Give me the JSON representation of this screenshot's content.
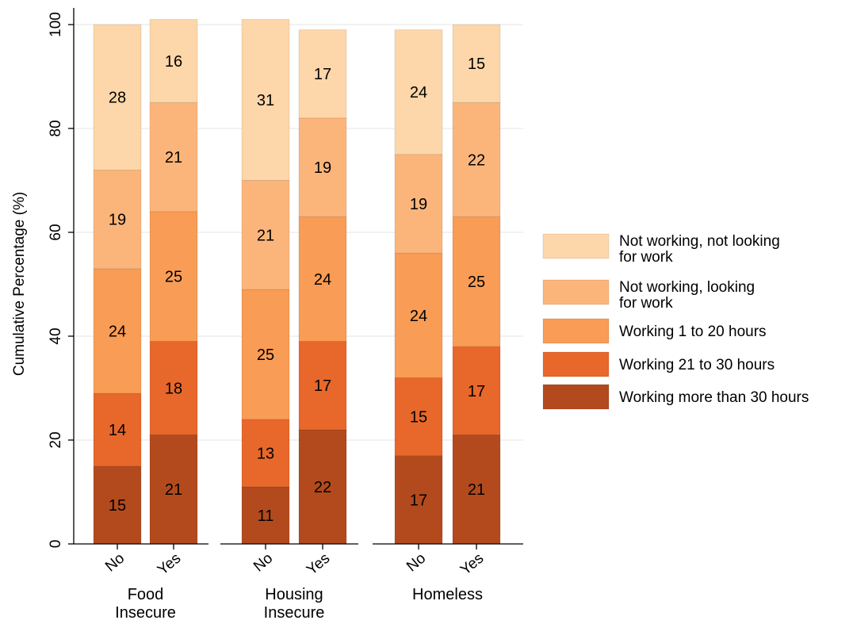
{
  "chart_data": {
    "type": "bar",
    "stacked": true,
    "ylabel": "Cumulative Percentage (%)",
    "ylim": [
      0,
      100
    ],
    "yticks": [
      0,
      20,
      40,
      60,
      80,
      100
    ],
    "grid": true,
    "legend_position": "right",
    "groups": [
      {
        "label": "Food\nInsecure",
        "categories": [
          "No",
          "Yes"
        ]
      },
      {
        "label": "Housing\nInsecure",
        "categories": [
          "No",
          "Yes"
        ]
      },
      {
        "label": "Homeless",
        "categories": [
          "No",
          "Yes"
        ]
      }
    ],
    "series": [
      {
        "name": "Working more than 30 hours",
        "color": "#b34a1d",
        "values": [
          15,
          21,
          11,
          22,
          17,
          21
        ]
      },
      {
        "name": "Working 21 to 30 hours",
        "color": "#e8672a",
        "values": [
          14,
          18,
          13,
          17,
          15,
          17
        ]
      },
      {
        "name": "Working 1 to 20 hours",
        "color": "#f99c55",
        "values": [
          24,
          25,
          25,
          24,
          24,
          25
        ]
      },
      {
        "name": "Not working, looking\nfor work",
        "color": "#fbb57b",
        "values": [
          19,
          21,
          21,
          19,
          19,
          22
        ]
      },
      {
        "name": "Not working, not looking\nfor work",
        "color": "#fdd6a9",
        "values": [
          28,
          16,
          31,
          17,
          24,
          15
        ]
      }
    ],
    "legend_order": [
      4,
      3,
      2,
      1,
      0
    ]
  }
}
